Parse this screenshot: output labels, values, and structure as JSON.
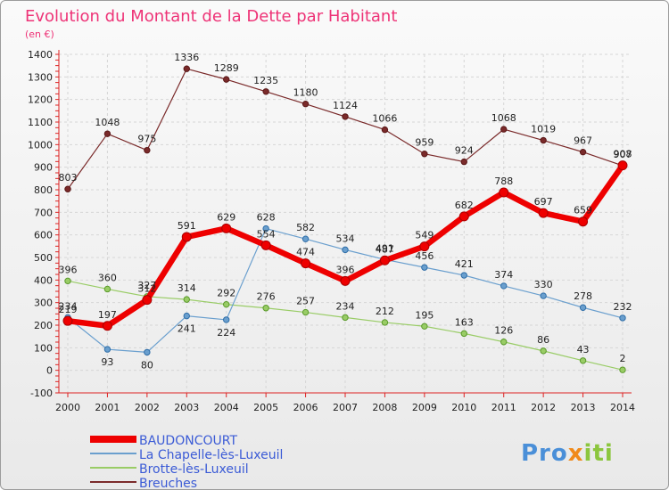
{
  "chart_data": {
    "type": "line",
    "title": "Evolution du Montant de la Dette par Habitant",
    "subtitle": "(en €)",
    "xlabel": "",
    "ylabel": "",
    "categories": [
      "2000",
      "2001",
      "2002",
      "2003",
      "2004",
      "2005",
      "2006",
      "2007",
      "2008",
      "2009",
      "2010",
      "2011",
      "2012",
      "2013",
      "2014"
    ],
    "ylim": [
      -100,
      1400
    ],
    "yticks": [
      -100,
      0,
      100,
      200,
      300,
      400,
      500,
      600,
      700,
      800,
      900,
      1000,
      1100,
      1200,
      1300,
      1400
    ],
    "grid": true,
    "legend_position": "bottom-left",
    "series": [
      {
        "name": "BAUDONCOURT",
        "color": "#ee0000",
        "values": [
          219,
          197,
          312,
          591,
          629,
          554,
          474,
          396,
          487,
          549,
          682,
          788,
          697,
          659,
          908
        ]
      },
      {
        "name": "La Chapelle-lès-Luxeuil",
        "color": "#6a9fce",
        "values": [
          234,
          93,
          80,
          241,
          224,
          628,
          582,
          534,
          491,
          456,
          421,
          374,
          330,
          278,
          232
        ]
      },
      {
        "name": "Brotte-lès-Luxeuil",
        "color": "#99cc66",
        "values": [
          396,
          360,
          327,
          314,
          292,
          276,
          257,
          234,
          212,
          195,
          163,
          126,
          86,
          43,
          2
        ]
      },
      {
        "name": "Breuches",
        "color": "#7a2a2a",
        "values": [
          803,
          1048,
          975,
          1336,
          1289,
          1235,
          1180,
          1124,
          1066,
          959,
          924,
          1068,
          1019,
          967,
          907
        ]
      }
    ]
  },
  "logo": {
    "text": "Proxiti"
  }
}
